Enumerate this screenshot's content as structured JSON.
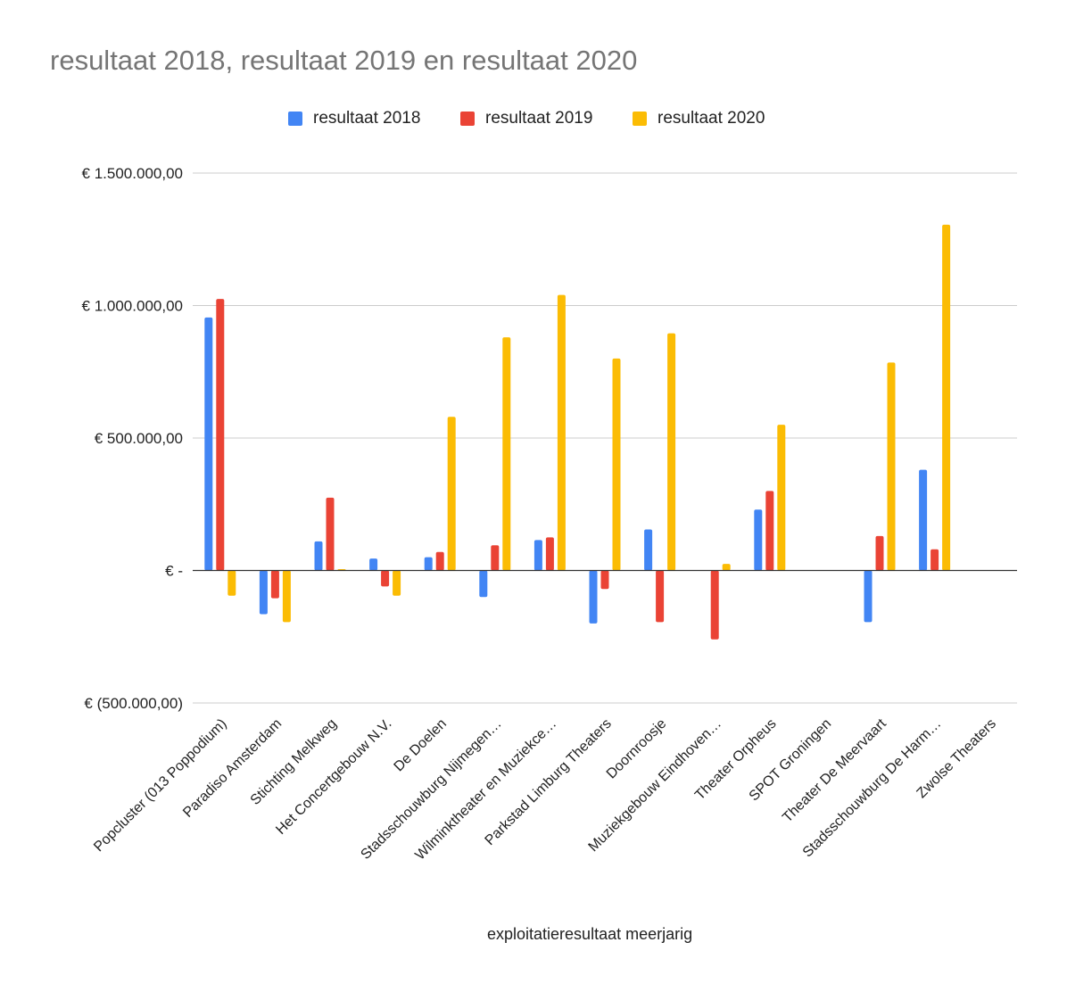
{
  "chart_data": {
    "type": "bar",
    "title": "resultaat 2018, resultaat 2019 en resultaat 2020",
    "xlabel": "exploitatieresultaat meerjarig",
    "ylabel": "",
    "ylim": [
      -500000,
      1500000
    ],
    "yticks": [
      {
        "value": 1500000,
        "label": "€ 1.500.000,00"
      },
      {
        "value": 1000000,
        "label": "€ 1.000.000,00"
      },
      {
        "value": 500000,
        "label": "€ 500.000,00"
      },
      {
        "value": 0,
        "label": "€ -"
      },
      {
        "value": -500000,
        "label": "€ (500.000,00)"
      }
    ],
    "grid": true,
    "legend_position": "top",
    "categories": [
      "Popcluster (013 Poppodium)",
      "Paradiso Amsterdam",
      "Stichting Melkweg",
      "Het Concertgebouw N.V.",
      "De Doelen",
      "Stadsschouwburg Nijmegen…",
      "Wilminktheater en Muziekce…",
      "Parkstad Limburg Theaters",
      "Doornroosje",
      "Muziekgebouw Eindhoven…",
      "Theater Orpheus",
      "SPOT Groningen",
      "Theater De Meervaart",
      "Stadsschouwburg De Harm…",
      "Zwolse Theaters"
    ],
    "series": [
      {
        "name": "resultaat 2018",
        "color": "#4285F4",
        "values": [
          955000,
          -165000,
          110000,
          45000,
          50000,
          -100000,
          115000,
          -200000,
          155000,
          0,
          230000,
          0,
          -195000,
          380000,
          0
        ]
      },
      {
        "name": "resultaat 2019",
        "color": "#EA4335",
        "values": [
          1025000,
          -105000,
          275000,
          -60000,
          70000,
          95000,
          125000,
          -70000,
          -195000,
          -260000,
          300000,
          0,
          130000,
          80000,
          0
        ]
      },
      {
        "name": "resultaat 2020",
        "color": "#FBBC04",
        "values": [
          -95000,
          -195000,
          5000,
          -95000,
          580000,
          880000,
          1040000,
          800000,
          895000,
          25000,
          550000,
          0,
          785000,
          1305000,
          0
        ]
      }
    ]
  }
}
